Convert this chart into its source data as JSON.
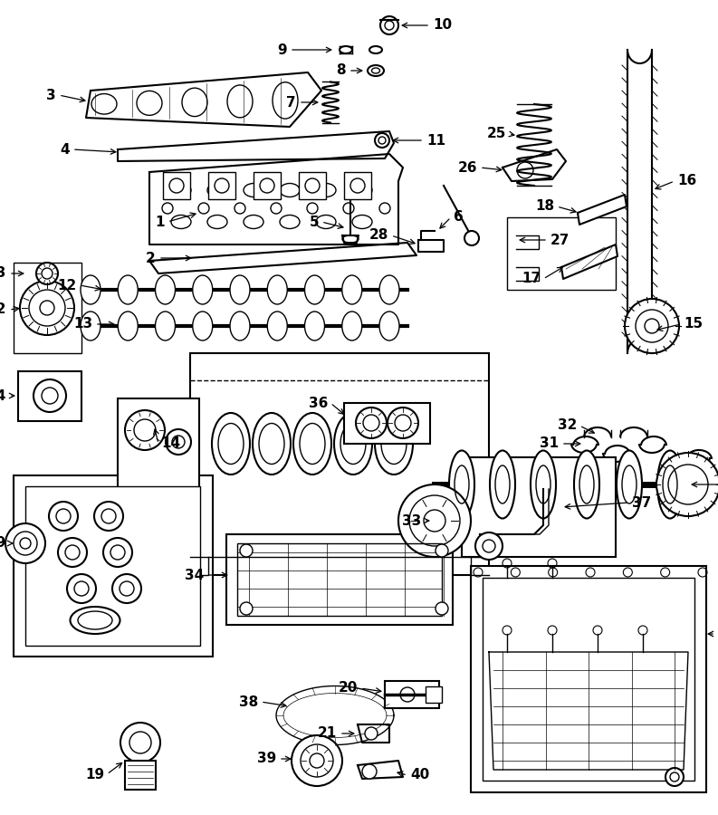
{
  "bg_color": "#ffffff",
  "line_color": "#000000",
  "fig_width": 7.93,
  "fig_height": 9.0,
  "dpi": 100
}
